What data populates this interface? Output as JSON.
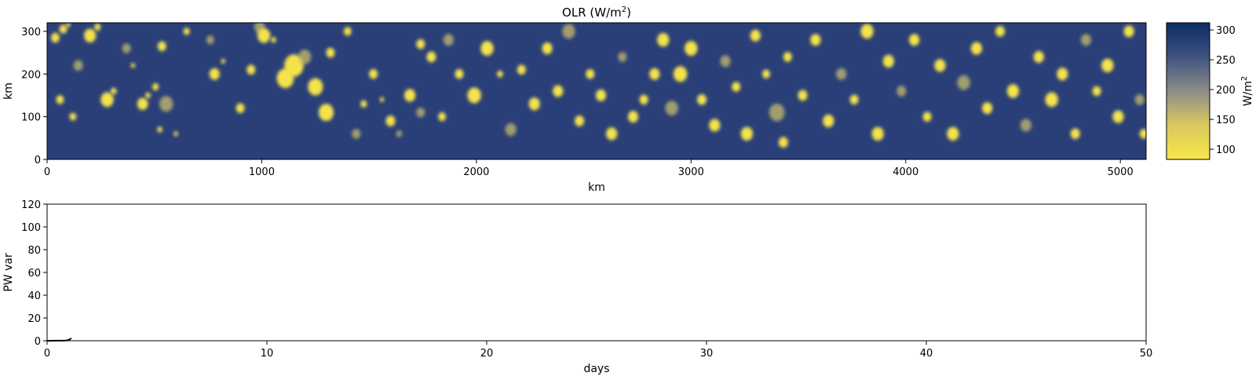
{
  "chart_data": [
    {
      "type": "heatmap",
      "title_main": "OLR (W/m",
      "title_sup": "2",
      "title_end": ")",
      "xlabel": "km",
      "ylabel": "km",
      "xlim": [
        0,
        5120
      ],
      "ylim": [
        0,
        320
      ],
      "xticks": [
        0,
        1000,
        2000,
        3000,
        4000,
        5000
      ],
      "yticks": [
        0,
        100,
        200,
        300
      ],
      "colorscale": {
        "low": "#f5e34b",
        "mid": "#8a8a86",
        "high": "#0b2c62",
        "background": "#2a3f78"
      },
      "colorbar": {
        "label_main": "W/m",
        "label_sup": "2",
        "range": [
          83,
          312
        ],
        "ticks": [
          100,
          150,
          200,
          250,
          300
        ]
      },
      "cells": [
        [
          38,
          285,
          20
        ],
        [
          75,
          305,
          18
        ],
        [
          98,
          315,
          10
        ],
        [
          145,
          220,
          22
        ],
        [
          200,
          290,
          28
        ],
        [
          235,
          310,
          15
        ],
        [
          280,
          140,
          30
        ],
        [
          310,
          160,
          14
        ],
        [
          370,
          260,
          20
        ],
        [
          400,
          220,
          10
        ],
        [
          445,
          130,
          25
        ],
        [
          470,
          150,
          12
        ],
        [
          505,
          170,
          15
        ],
        [
          555,
          130,
          32
        ],
        [
          535,
          265,
          20
        ],
        [
          525,
          70,
          12
        ],
        [
          600,
          60,
          10
        ],
        [
          650,
          300,
          15
        ],
        [
          760,
          280,
          18
        ],
        [
          780,
          200,
          24
        ],
        [
          820,
          230,
          10
        ],
        [
          900,
          120,
          20
        ],
        [
          950,
          210,
          20
        ],
        [
          990,
          310,
          25
        ],
        [
          1010,
          290,
          30
        ],
        [
          1055,
          280,
          12
        ],
        [
          1110,
          190,
          40
        ],
        [
          1150,
          220,
          45
        ],
        [
          1200,
          240,
          30
        ],
        [
          1250,
          170,
          35
        ],
        [
          1300,
          110,
          35
        ],
        [
          1320,
          250,
          20
        ],
        [
          1400,
          300,
          18
        ],
        [
          1440,
          60,
          20
        ],
        [
          1475,
          130,
          15
        ],
        [
          1520,
          200,
          20
        ],
        [
          1560,
          140,
          10
        ],
        [
          1600,
          90,
          22
        ],
        [
          1640,
          60,
          14
        ],
        [
          1690,
          150,
          26
        ],
        [
          1740,
          270,
          20
        ],
        [
          1790,
          240,
          22
        ],
        [
          1840,
          100,
          18
        ],
        [
          1870,
          280,
          24
        ],
        [
          1920,
          200,
          20
        ],
        [
          1990,
          150,
          32
        ],
        [
          2050,
          260,
          30
        ],
        [
          2110,
          200,
          14
        ],
        [
          2160,
          70,
          26
        ],
        [
          2210,
          210,
          20
        ],
        [
          2270,
          130,
          26
        ],
        [
          2330,
          260,
          24
        ],
        [
          2380,
          160,
          24
        ],
        [
          2430,
          300,
          30
        ],
        [
          2480,
          90,
          22
        ],
        [
          2530,
          200,
          20
        ],
        [
          2580,
          150,
          24
        ],
        [
          2630,
          60,
          26
        ],
        [
          2680,
          240,
          20
        ],
        [
          2730,
          100,
          24
        ],
        [
          2780,
          140,
          20
        ],
        [
          2830,
          200,
          24
        ],
        [
          2870,
          280,
          28
        ],
        [
          2910,
          120,
          30
        ],
        [
          2950,
          200,
          32
        ],
        [
          3000,
          260,
          30
        ],
        [
          3050,
          140,
          22
        ],
        [
          3110,
          80,
          26
        ],
        [
          3160,
          230,
          24
        ],
        [
          3210,
          170,
          20
        ],
        [
          3260,
          60,
          28
        ],
        [
          3300,
          290,
          24
        ],
        [
          3350,
          200,
          18
        ],
        [
          3400,
          110,
          36
        ],
        [
          3450,
          240,
          20
        ],
        [
          3520,
          150,
          22
        ],
        [
          3580,
          280,
          24
        ],
        [
          3640,
          90,
          26
        ],
        [
          3700,
          200,
          24
        ],
        [
          3760,
          140,
          20
        ],
        [
          3820,
          300,
          30
        ],
        [
          3870,
          60,
          28
        ],
        [
          3920,
          230,
          26
        ],
        [
          3980,
          160,
          22
        ],
        [
          4040,
          280,
          24
        ],
        [
          4100,
          100,
          20
        ],
        [
          4160,
          220,
          26
        ],
        [
          4220,
          60,
          28
        ],
        [
          4270,
          180,
          30
        ],
        [
          4330,
          260,
          26
        ],
        [
          4380,
          120,
          24
        ],
        [
          4440,
          300,
          22
        ],
        [
          4500,
          160,
          28
        ],
        [
          4560,
          80,
          26
        ],
        [
          4620,
          240,
          24
        ],
        [
          4680,
          140,
          30
        ],
        [
          4730,
          200,
          26
        ],
        [
          4790,
          60,
          22
        ],
        [
          4840,
          280,
          24
        ],
        [
          4890,
          160,
          20
        ],
        [
          4940,
          220,
          28
        ],
        [
          4990,
          100,
          26
        ],
        [
          5040,
          300,
          24
        ],
        [
          5090,
          140,
          22
        ],
        [
          5110,
          60,
          20
        ],
        [
          60,
          140,
          18
        ],
        [
          120,
          100,
          16
        ],
        [
          3430,
          40,
          22
        ],
        [
          1740,
          110,
          20
        ]
      ]
    },
    {
      "type": "line",
      "xlabel": "days",
      "ylabel": "PW var",
      "xlim": [
        0,
        50
      ],
      "ylim": [
        0,
        120
      ],
      "xticks": [
        0,
        10,
        20,
        30,
        40,
        50
      ],
      "yticks": [
        0,
        20,
        40,
        60,
        80,
        100,
        120
      ],
      "series": [
        {
          "x": [
            0,
            0.2,
            0.4,
            0.6,
            0.8,
            0.95,
            1.0,
            1.05,
            1.1
          ],
          "y": [
            0,
            0,
            0.05,
            0.1,
            0.2,
            0.4,
            0.9,
            1.5,
            2.2
          ]
        }
      ]
    }
  ]
}
